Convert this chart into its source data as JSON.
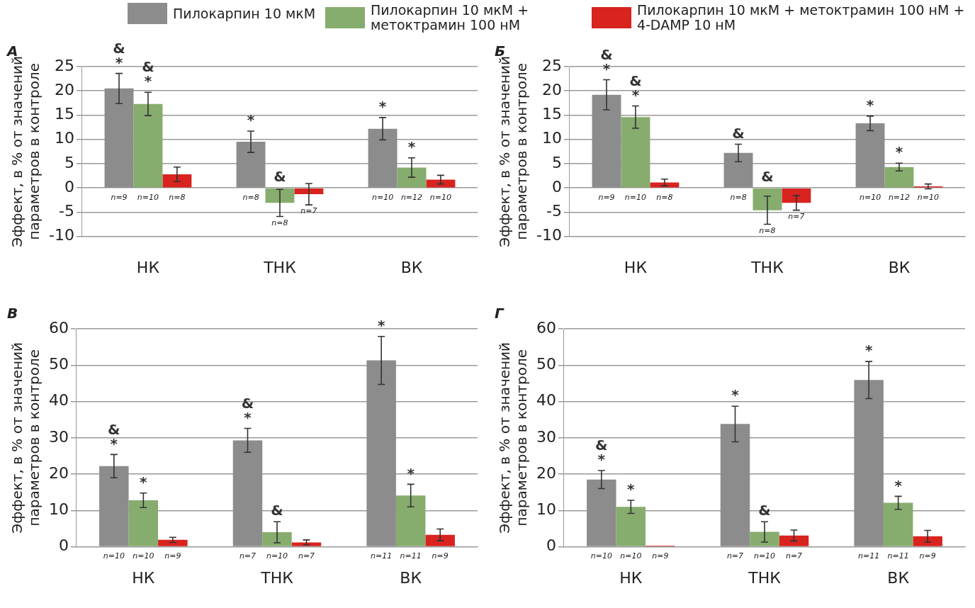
{
  "chart_data": [
    {
      "type": "bar",
      "title": "А",
      "ylabel": "Эффект, в % от значений параметров в контроле",
      "categories": [
        "НК",
        "ТНК",
        "ВК"
      ],
      "ylim": [
        -10,
        25
      ],
      "yticks": [
        -10,
        -5,
        0,
        5,
        10,
        15,
        20,
        25
      ],
      "grid": "y",
      "legend": "top",
      "series": [
        {
          "name": "Пилокарпин 10 мкМ",
          "color": "#8c8c8c",
          "values": [
            20.5,
            9.5,
            12.2
          ],
          "errors": [
            3.1,
            2.2,
            2.3
          ]
        },
        {
          "name": "Пилокарпин 10 мкМ + метоктрамин 100 нМ",
          "color": "#86ac6e",
          "values": [
            17.3,
            -3.1,
            4.2
          ],
          "errors": [
            2.4,
            2.8,
            2.0
          ]
        },
        {
          "name": "Пилокарпин 10 мкМ + метоктрамин 100 нМ + 4-DAMP 10 нМ",
          "color": "#d8231f",
          "values": [
            2.8,
            -1.3,
            1.7
          ],
          "errors": [
            1.5,
            2.2,
            0.9
          ]
        }
      ],
      "annotations": [
        "*",
        "&",
        "*",
        "&",
        "*",
        "&",
        "*",
        "*",
        "n=9",
        "n=10",
        "n=8",
        "n=8",
        "n=8",
        "n=7",
        "n=10",
        "n=12",
        "n=10"
      ]
    },
    {
      "type": "bar",
      "title": "Б",
      "ylabel": "Эффект, в % от значений параметров в контроле",
      "categories": [
        "НК",
        "ТНК",
        "ВК"
      ],
      "ylim": [
        -10,
        25
      ],
      "yticks": [
        -10,
        -5,
        0,
        5,
        10,
        15,
        20,
        25
      ],
      "grid": "y",
      "series": [
        {
          "color": "#8c8c8c",
          "values": [
            19.2,
            7.2,
            13.3
          ],
          "errors": [
            3.1,
            1.8,
            1.5
          ]
        },
        {
          "color": "#86ac6e",
          "values": [
            14.6,
            -4.6,
            4.3
          ],
          "errors": [
            2.3,
            2.9,
            0.8
          ]
        },
        {
          "color": "#d8231f",
          "values": [
            1.1,
            -3.1,
            0.3
          ],
          "errors": [
            0.7,
            1.5,
            0.5
          ]
        }
      ],
      "annotations": [
        "*",
        "&",
        "*",
        "&",
        "&",
        "&",
        "*",
        "*",
        "n=9",
        "n=10",
        "n=8",
        "n=8",
        "n=8",
        "n=7",
        "n=10",
        "n=12",
        "n=10"
      ]
    },
    {
      "type": "bar",
      "title": "В",
      "ylabel": "Эффект, в % от значений параметров в контроле",
      "categories": [
        "НК",
        "ТНК",
        "ВК"
      ],
      "ylim": [
        0,
        60
      ],
      "yticks": [
        0,
        10,
        20,
        30,
        40,
        50,
        60
      ],
      "grid": "y",
      "series": [
        {
          "color": "#8c8c8c",
          "values": [
            22.2,
            29.3,
            51.3
          ],
          "errors": [
            3.2,
            3.3,
            6.6
          ]
        },
        {
          "color": "#86ac6e",
          "values": [
            12.8,
            4.0,
            14.1
          ],
          "errors": [
            2.0,
            2.9,
            3.1
          ]
        },
        {
          "color": "#d8231f",
          "values": [
            1.9,
            1.2,
            3.3
          ],
          "errors": [
            0.7,
            0.7,
            1.6
          ]
        }
      ],
      "annotations": [
        "*",
        "&",
        "*",
        "*",
        "&",
        "&",
        "*",
        "*",
        "n=10",
        "n=10",
        "n=9",
        "n=7",
        "n=10",
        "n=7",
        "n=11",
        "n=11",
        "n=9"
      ]
    },
    {
      "type": "bar",
      "title": "Г",
      "ylabel": "Эффект, в % от значений параметров в контроле",
      "categories": [
        "НК",
        "ТНК",
        "ВК"
      ],
      "ylim": [
        0,
        60
      ],
      "yticks": [
        0,
        10,
        20,
        30,
        40,
        50,
        60
      ],
      "grid": "y",
      "series": [
        {
          "color": "#8c8c8c",
          "values": [
            18.5,
            33.8,
            45.9
          ],
          "errors": [
            2.5,
            4.9,
            5.1
          ]
        },
        {
          "color": "#86ac6e",
          "values": [
            11.0,
            4.1,
            12.1
          ],
          "errors": [
            1.8,
            2.8,
            1.8
          ]
        },
        {
          "color": "#d8231f",
          "values": [
            0.3,
            3.1,
            2.9
          ],
          "errors": [
            null,
            1.5,
            1.6
          ]
        }
      ],
      "annotations": [
        "*",
        "&",
        "*",
        "*",
        "&",
        "*",
        "*",
        "n=10",
        "n=10",
        "n=9",
        "n=7",
        "n=10",
        "n=7",
        "n=11",
        "n=11",
        "n=9"
      ]
    }
  ]
}
